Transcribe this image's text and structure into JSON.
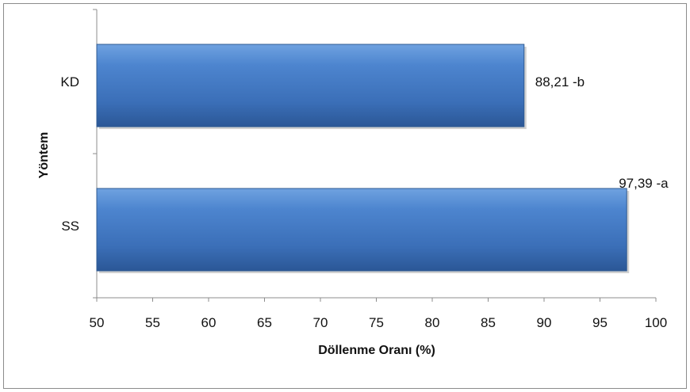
{
  "chart_data": {
    "type": "bar",
    "orientation": "horizontal",
    "categories": [
      "KD",
      "SS"
    ],
    "values": [
      88.21,
      97.39
    ],
    "data_labels": [
      "88,21  -b",
      "97,39  -a"
    ],
    "xlabel": "Döllenme Oranı (%)",
    "ylabel": "Yöntem",
    "xlim": [
      50,
      100
    ],
    "xticks": [
      "50",
      "55",
      "60",
      "65",
      "70",
      "75",
      "80",
      "85",
      "90",
      "95",
      "100"
    ],
    "grid": false,
    "legend": "none",
    "bar_color": "#4a7ebb"
  }
}
